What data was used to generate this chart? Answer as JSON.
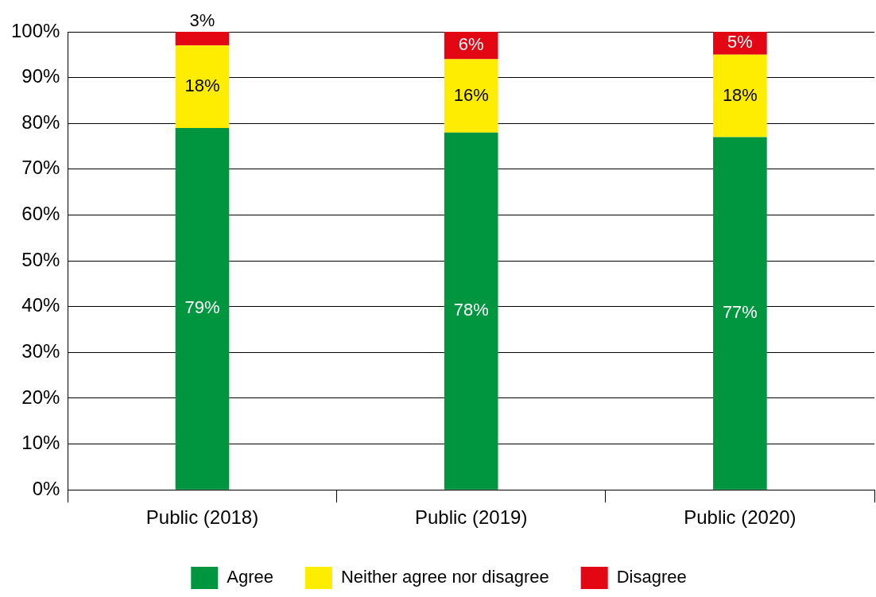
{
  "chart_data": {
    "type": "bar",
    "stacked": true,
    "categories": [
      "Public (2018)",
      "Public (2019)",
      "Public (2020)"
    ],
    "series": [
      {
        "name": "Agree",
        "color": "#009640",
        "values": [
          79,
          78,
          77
        ],
        "value_labels": [
          "79%",
          "78%",
          "77%"
        ]
      },
      {
        "name": "Neither agree nor disagree",
        "color": "#ffed00",
        "values": [
          18,
          16,
          18
        ],
        "value_labels": [
          "18%",
          "16%",
          "18%"
        ]
      },
      {
        "name": "Disagree",
        "color": "#e30613",
        "values": [
          3,
          6,
          5
        ],
        "value_labels": [
          "3%",
          "6%",
          "5%"
        ]
      }
    ],
    "ylim": [
      0,
      100
    ],
    "yticks": [
      {
        "value": 0,
        "label": "0%"
      },
      {
        "value": 10,
        "label": "10%"
      },
      {
        "value": 20,
        "label": "20%"
      },
      {
        "value": 30,
        "label": "30%"
      },
      {
        "value": 40,
        "label": "40%"
      },
      {
        "value": 50,
        "label": "50%"
      },
      {
        "value": 60,
        "label": "60%"
      },
      {
        "value": 70,
        "label": "70%"
      },
      {
        "value": 80,
        "label": "80%"
      },
      {
        "value": 90,
        "label": "90%"
      },
      {
        "value": 100,
        "label": "100%"
      }
    ],
    "grid": "y",
    "legend": "bottom"
  }
}
